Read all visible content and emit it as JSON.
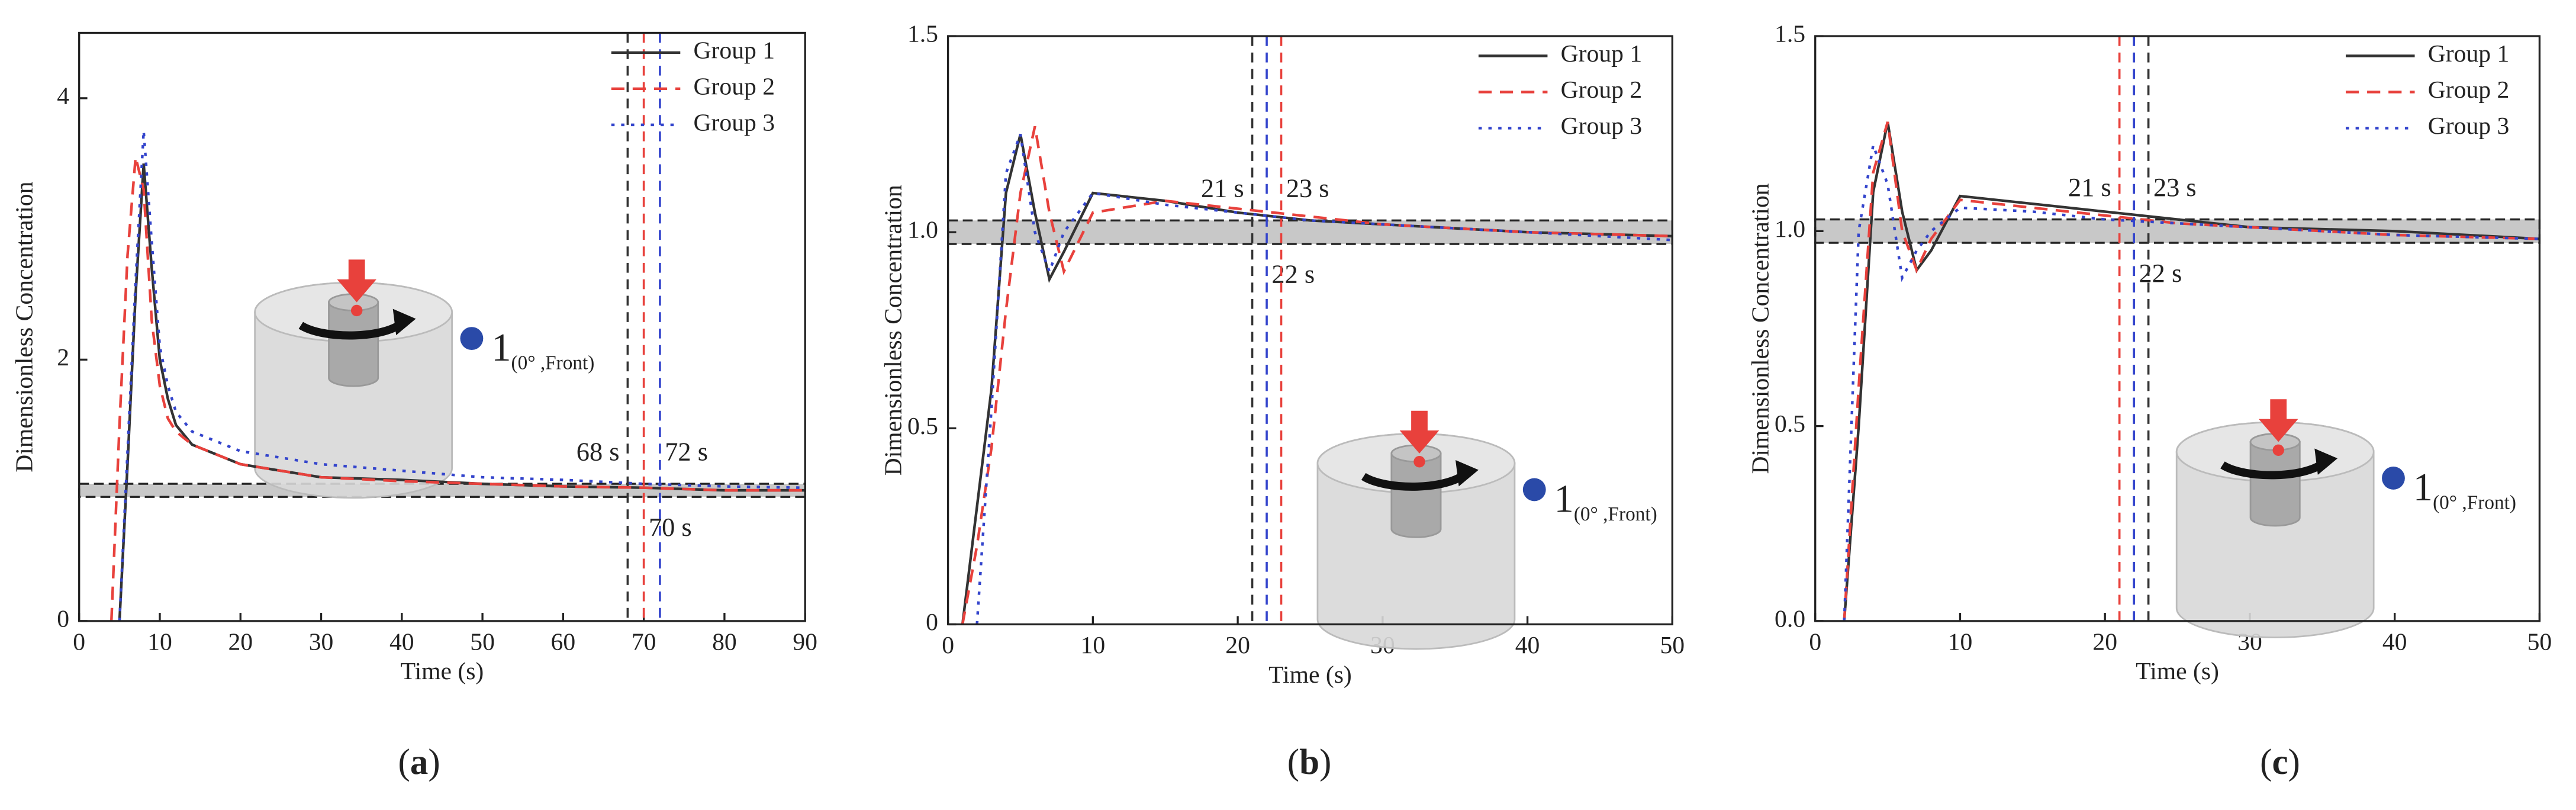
{
  "chart_data": [
    {
      "type": "line",
      "caption_open": "(",
      "caption": "a",
      "caption_close": ")",
      "xlabel": "Time (s)",
      "ylabel": "Dimensionless Concentration",
      "x": [
        4,
        5,
        6,
        7,
        8,
        9,
        10,
        11,
        12,
        14,
        16,
        18,
        20,
        25,
        30,
        40,
        50,
        60,
        70,
        80,
        90
      ],
      "xlim": [
        0,
        90
      ],
      "xticks": [
        0,
        10,
        20,
        30,
        40,
        50,
        60,
        70,
        80,
        90
      ],
      "ylim": [
        0,
        4.5
      ],
      "yticks": [
        0,
        2,
        4
      ],
      "series": [
        {
          "name": "Group 1",
          "color": "#333333",
          "dash": "solid",
          "values": [
            null,
            0,
            1.2,
            2.5,
            3.5,
            2.7,
            2.0,
            1.7,
            1.5,
            1.35,
            1.3,
            1.25,
            1.2,
            1.15,
            1.1,
            1.08,
            1.05,
            1.03,
            1.02,
            1.0,
            1.0
          ]
        },
        {
          "name": "Group 2",
          "color": "#e8413c",
          "dash": "dashed",
          "values": [
            0,
            1.5,
            2.8,
            3.55,
            3.3,
            2.3,
            1.8,
            1.55,
            1.45,
            1.35,
            1.3,
            1.25,
            1.2,
            1.15,
            1.1,
            1.07,
            1.05,
            1.03,
            1.02,
            1.0,
            1.0
          ]
        },
        {
          "name": "Group 3",
          "color": "#3344cc",
          "dash": "dotted",
          "values": [
            null,
            0,
            1.3,
            2.6,
            3.75,
            2.9,
            2.1,
            1.8,
            1.6,
            1.45,
            1.4,
            1.35,
            1.3,
            1.25,
            1.2,
            1.15,
            1.1,
            1.08,
            1.05,
            1.03,
            1.02
          ]
        }
      ],
      "band": [
        0.95,
        1.05
      ],
      "markers": [
        {
          "x": 68,
          "color": "#333333",
          "label": "68 s"
        },
        {
          "x": 70,
          "color": "#e8413c",
          "label": "70 s"
        },
        {
          "x": 72,
          "color": "#3344cc",
          "label": "72 s"
        }
      ],
      "inset_label": "1",
      "inset_sub": "(0° ,Front)"
    },
    {
      "type": "line",
      "caption_open": "(",
      "caption": "b",
      "caption_close": ")",
      "xlabel": "Time (s)",
      "ylabel": "Dimensionless Concentration",
      "x": [
        1,
        2,
        3,
        4,
        5,
        6,
        7,
        8,
        10,
        15,
        20,
        25,
        30,
        40,
        50
      ],
      "xlim": [
        0,
        50
      ],
      "xticks": [
        0,
        10,
        20,
        30,
        40,
        50
      ],
      "ylim": [
        0,
        1.5
      ],
      "yticks": [
        0,
        0.5,
        {
          "value": 1,
          "label": "1.0"
        },
        1.5
      ],
      "series": [
        {
          "name": "Group 1",
          "color": "#333333",
          "dash": "solid",
          "values": [
            0,
            0.3,
            0.6,
            1.1,
            1.25,
            1.05,
            0.88,
            0.95,
            1.1,
            1.08,
            1.05,
            1.03,
            1.02,
            1.0,
            0.99
          ]
        },
        {
          "name": "Group 2",
          "color": "#e8413c",
          "dash": "dashed",
          "values": [
            0,
            0.2,
            0.45,
            0.8,
            1.1,
            1.27,
            1.05,
            0.9,
            1.05,
            1.08,
            1.06,
            1.04,
            1.02,
            1.0,
            0.99
          ]
        },
        {
          "name": "Group 3",
          "color": "#3344cc",
          "dash": "dotted",
          "values": [
            null,
            0,
            0.55,
            1.15,
            1.25,
            1.0,
            0.9,
            1.0,
            1.1,
            1.07,
            1.05,
            1.03,
            1.02,
            1.0,
            0.98
          ]
        }
      ],
      "band": [
        0.97,
        1.03
      ],
      "markers": [
        {
          "x": 21,
          "color": "#333333",
          "label": "21 s"
        },
        {
          "x": 22,
          "color": "#3344cc",
          "label": "22 s"
        },
        {
          "x": 23,
          "color": "#e8413c",
          "label": "23 s"
        }
      ],
      "inset_label": "1",
      "inset_sub": "(0° ,Front)"
    },
    {
      "type": "line",
      "caption_open": "(",
      "caption": "c",
      "caption_close": ")",
      "xlabel": "Time (s)",
      "ylabel": "Dimensionless Concentration",
      "x": [
        1,
        2,
        3,
        4,
        5,
        6,
        7,
        8,
        10,
        15,
        20,
        25,
        30,
        40,
        50
      ],
      "xlim": [
        0,
        50
      ],
      "xticks": [
        0,
        10,
        20,
        30,
        40,
        50
      ],
      "ylim": [
        0,
        1.5
      ],
      "yticks": [
        {
          "value": 0,
          "label": "0.0"
        },
        0.5,
        {
          "value": 1,
          "label": "1.0"
        },
        1.5
      ],
      "series": [
        {
          "name": "Group 1",
          "color": "#333333",
          "dash": "solid",
          "values": [
            null,
            0,
            0.5,
            1.1,
            1.28,
            1.05,
            0.9,
            0.95,
            1.09,
            1.07,
            1.05,
            1.03,
            1.01,
            1.0,
            0.98
          ]
        },
        {
          "name": "Group 2",
          "color": "#e8413c",
          "dash": "dashed",
          "values": [
            null,
            0,
            0.6,
            1.15,
            1.28,
            1.0,
            0.9,
            0.98,
            1.08,
            1.06,
            1.04,
            1.02,
            1.01,
            0.99,
            0.98
          ]
        },
        {
          "name": "Group 3",
          "color": "#3344cc",
          "dash": "dotted",
          "values": [
            null,
            0,
            1.0,
            1.22,
            1.12,
            0.88,
            0.95,
            1.0,
            1.06,
            1.05,
            1.03,
            1.02,
            1.01,
            0.99,
            0.98
          ]
        }
      ],
      "band": [
        0.97,
        1.03
      ],
      "markers": [
        {
          "x": 21,
          "color": "#e8413c",
          "label": "21 s"
        },
        {
          "x": 22,
          "color": "#3344cc",
          "label": "22 s"
        },
        {
          "x": 23,
          "color": "#333333",
          "label": "23 s"
        }
      ],
      "inset_label": "1",
      "inset_sub": "(0° ,Front)"
    }
  ]
}
